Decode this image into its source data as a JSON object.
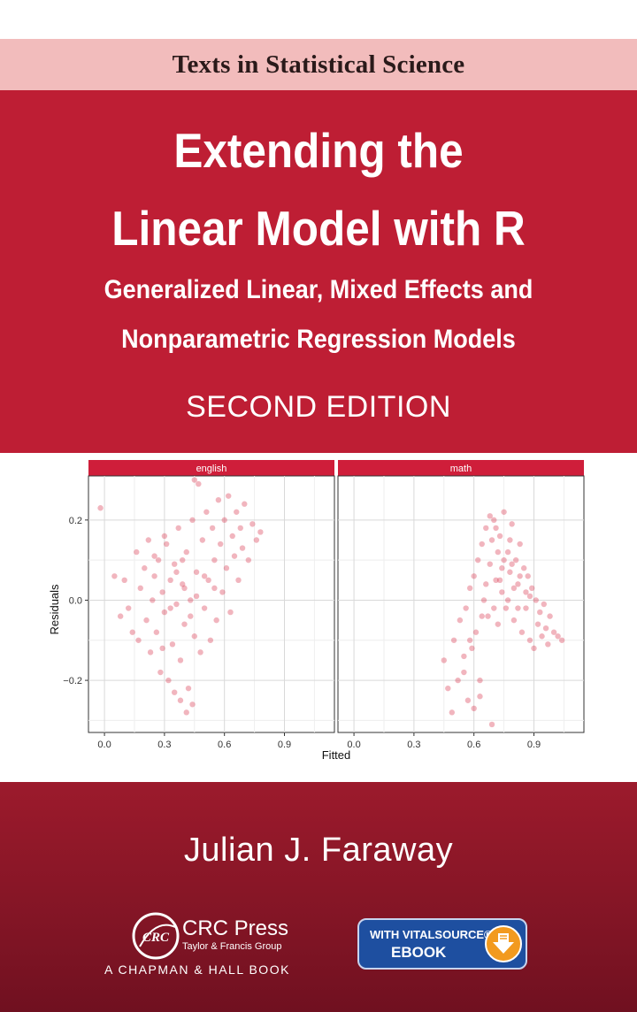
{
  "series": {
    "label": "Texts in Statistical Science"
  },
  "book": {
    "title_line1": "Extending the",
    "title_line2": "Linear Model with R",
    "subtitle_line1": "Generalized Linear, Mixed Effects and",
    "subtitle_line2": "Nonparametric Regression Models",
    "edition": "SECOND EDITION",
    "author": "Julian J. Faraway"
  },
  "publisher": {
    "name": "CRC Press",
    "group": "Taylor & Francis Group",
    "imprint": "A CHAPMAN & HALL BOOK",
    "logo_text": "CRC"
  },
  "badge": {
    "line1": "WITH VITALSOURCE®",
    "line2": "EBOOK",
    "icon": "download-arrow-icon"
  },
  "colors": {
    "cover_red": "#be1e34",
    "series_band": "#f2bcbc",
    "bottom_red": "#7e1424",
    "point": "#d62a46",
    "strip": "#cf1e3a",
    "badge_blue": "#1e4fa0",
    "badge_orange": "#f29a1f"
  },
  "chart_data": {
    "type": "scatter",
    "xlabel": "Fitted",
    "ylabel": "Residuals",
    "grid": true,
    "xlim": [
      -0.08,
      1.15
    ],
    "ylim": [
      -0.33,
      0.31
    ],
    "xticks": [
      "0.0",
      "0.3",
      "0.6",
      "0.9"
    ],
    "yticks": [
      "0.2",
      "0.0",
      "−0.2"
    ],
    "panels": [
      {
        "name": "english",
        "points": [
          [
            -0.02,
            0.23
          ],
          [
            0.05,
            0.06
          ],
          [
            0.08,
            -0.04
          ],
          [
            0.1,
            0.05
          ],
          [
            0.12,
            -0.02
          ],
          [
            0.14,
            -0.08
          ],
          [
            0.16,
            0.12
          ],
          [
            0.17,
            -0.1
          ],
          [
            0.18,
            0.03
          ],
          [
            0.2,
            0.08
          ],
          [
            0.21,
            -0.05
          ],
          [
            0.22,
            0.15
          ],
          [
            0.23,
            -0.13
          ],
          [
            0.24,
            0.0
          ],
          [
            0.25,
            0.06
          ],
          [
            0.26,
            -0.08
          ],
          [
            0.27,
            0.1
          ],
          [
            0.28,
            -0.18
          ],
          [
            0.29,
            0.02
          ],
          [
            0.3,
            -0.03
          ],
          [
            0.31,
            0.14
          ],
          [
            0.32,
            -0.2
          ],
          [
            0.33,
            0.05
          ],
          [
            0.34,
            -0.11
          ],
          [
            0.35,
            0.09
          ],
          [
            0.36,
            -0.01
          ],
          [
            0.37,
            0.18
          ],
          [
            0.38,
            -0.15
          ],
          [
            0.39,
            0.04
          ],
          [
            0.4,
            -0.06
          ],
          [
            0.41,
            0.12
          ],
          [
            0.42,
            -0.22
          ],
          [
            0.43,
            0.0
          ],
          [
            0.44,
            0.2
          ],
          [
            0.45,
            -0.09
          ],
          [
            0.46,
            0.07
          ],
          [
            0.47,
            0.29
          ],
          [
            0.48,
            -0.13
          ],
          [
            0.49,
            0.15
          ],
          [
            0.5,
            -0.02
          ],
          [
            0.51,
            0.22
          ],
          [
            0.52,
            0.05
          ],
          [
            0.53,
            -0.1
          ],
          [
            0.54,
            0.18
          ],
          [
            0.55,
            0.1
          ],
          [
            0.56,
            -0.05
          ],
          [
            0.57,
            0.25
          ],
          [
            0.58,
            0.14
          ],
          [
            0.59,
            0.02
          ],
          [
            0.6,
            0.2
          ],
          [
            0.61,
            0.08
          ],
          [
            0.62,
            0.26
          ],
          [
            0.63,
            -0.03
          ],
          [
            0.64,
            0.16
          ],
          [
            0.65,
            0.11
          ],
          [
            0.66,
            0.22
          ],
          [
            0.67,
            0.05
          ],
          [
            0.68,
            0.18
          ],
          [
            0.69,
            0.13
          ],
          [
            0.7,
            0.24
          ],
          [
            0.72,
            0.1
          ],
          [
            0.74,
            0.19
          ],
          [
            0.76,
            0.15
          ],
          [
            0.78,
            0.17
          ],
          [
            0.38,
            -0.25
          ],
          [
            0.41,
            -0.28
          ],
          [
            0.44,
            -0.26
          ],
          [
            0.35,
            -0.23
          ],
          [
            0.3,
            0.16
          ],
          [
            0.25,
            0.11
          ],
          [
            0.45,
            0.3
          ],
          [
            0.33,
            -0.02
          ],
          [
            0.4,
            0.03
          ],
          [
            0.46,
            0.01
          ],
          [
            0.36,
            0.07
          ],
          [
            0.29,
            -0.12
          ],
          [
            0.5,
            0.06
          ],
          [
            0.55,
            0.03
          ],
          [
            0.43,
            -0.04
          ],
          [
            0.39,
            0.1
          ]
        ]
      },
      {
        "name": "math",
        "points": [
          [
            0.45,
            -0.15
          ],
          [
            0.47,
            -0.22
          ],
          [
            0.49,
            -0.28
          ],
          [
            0.5,
            -0.1
          ],
          [
            0.52,
            -0.2
          ],
          [
            0.53,
            -0.05
          ],
          [
            0.55,
            -0.18
          ],
          [
            0.56,
            -0.02
          ],
          [
            0.57,
            -0.25
          ],
          [
            0.58,
            0.03
          ],
          [
            0.59,
            -0.12
          ],
          [
            0.6,
            0.06
          ],
          [
            0.61,
            -0.08
          ],
          [
            0.62,
            0.1
          ],
          [
            0.63,
            -0.2
          ],
          [
            0.64,
            0.14
          ],
          [
            0.65,
            0.0
          ],
          [
            0.66,
            0.18
          ],
          [
            0.67,
            -0.04
          ],
          [
            0.68,
            0.09
          ],
          [
            0.69,
            -0.31
          ],
          [
            0.7,
            0.2
          ],
          [
            0.71,
            0.05
          ],
          [
            0.72,
            -0.06
          ],
          [
            0.73,
            0.16
          ],
          [
            0.74,
            0.02
          ],
          [
            0.75,
            0.22
          ],
          [
            0.76,
            -0.02
          ],
          [
            0.77,
            0.12
          ],
          [
            0.78,
            0.07
          ],
          [
            0.79,
            0.19
          ],
          [
            0.8,
            -0.05
          ],
          [
            0.81,
            0.1
          ],
          [
            0.82,
            0.04
          ],
          [
            0.83,
            0.14
          ],
          [
            0.84,
            -0.08
          ],
          [
            0.85,
            0.08
          ],
          [
            0.86,
            -0.02
          ],
          [
            0.87,
            0.06
          ],
          [
            0.88,
            -0.1
          ],
          [
            0.89,
            0.03
          ],
          [
            0.9,
            -0.12
          ],
          [
            0.91,
            0.0
          ],
          [
            0.92,
            -0.06
          ],
          [
            0.93,
            -0.03
          ],
          [
            0.94,
            -0.09
          ],
          [
            0.95,
            -0.01
          ],
          [
            0.96,
            -0.07
          ],
          [
            0.97,
            -0.11
          ],
          [
            0.98,
            -0.04
          ],
          [
            1.0,
            -0.08
          ],
          [
            1.02,
            -0.09
          ],
          [
            1.04,
            -0.1
          ],
          [
            0.6,
            -0.27
          ],
          [
            0.63,
            -0.24
          ],
          [
            0.68,
            0.21
          ],
          [
            0.72,
            0.12
          ],
          [
            0.74,
            0.08
          ],
          [
            0.77,
            0.0
          ],
          [
            0.8,
            0.03
          ],
          [
            0.66,
            0.04
          ],
          [
            0.7,
            -0.02
          ],
          [
            0.78,
            0.15
          ],
          [
            0.83,
            0.06
          ],
          [
            0.86,
            0.02
          ],
          [
            0.75,
            0.1
          ],
          [
            0.69,
            0.15
          ],
          [
            0.64,
            -0.04
          ],
          [
            0.58,
            -0.1
          ],
          [
            0.55,
            -0.14
          ],
          [
            0.82,
            -0.02
          ],
          [
            0.73,
            0.05
          ],
          [
            0.79,
            0.09
          ],
          [
            0.88,
            0.01
          ],
          [
            0.71,
            0.18
          ]
        ]
      }
    ]
  }
}
